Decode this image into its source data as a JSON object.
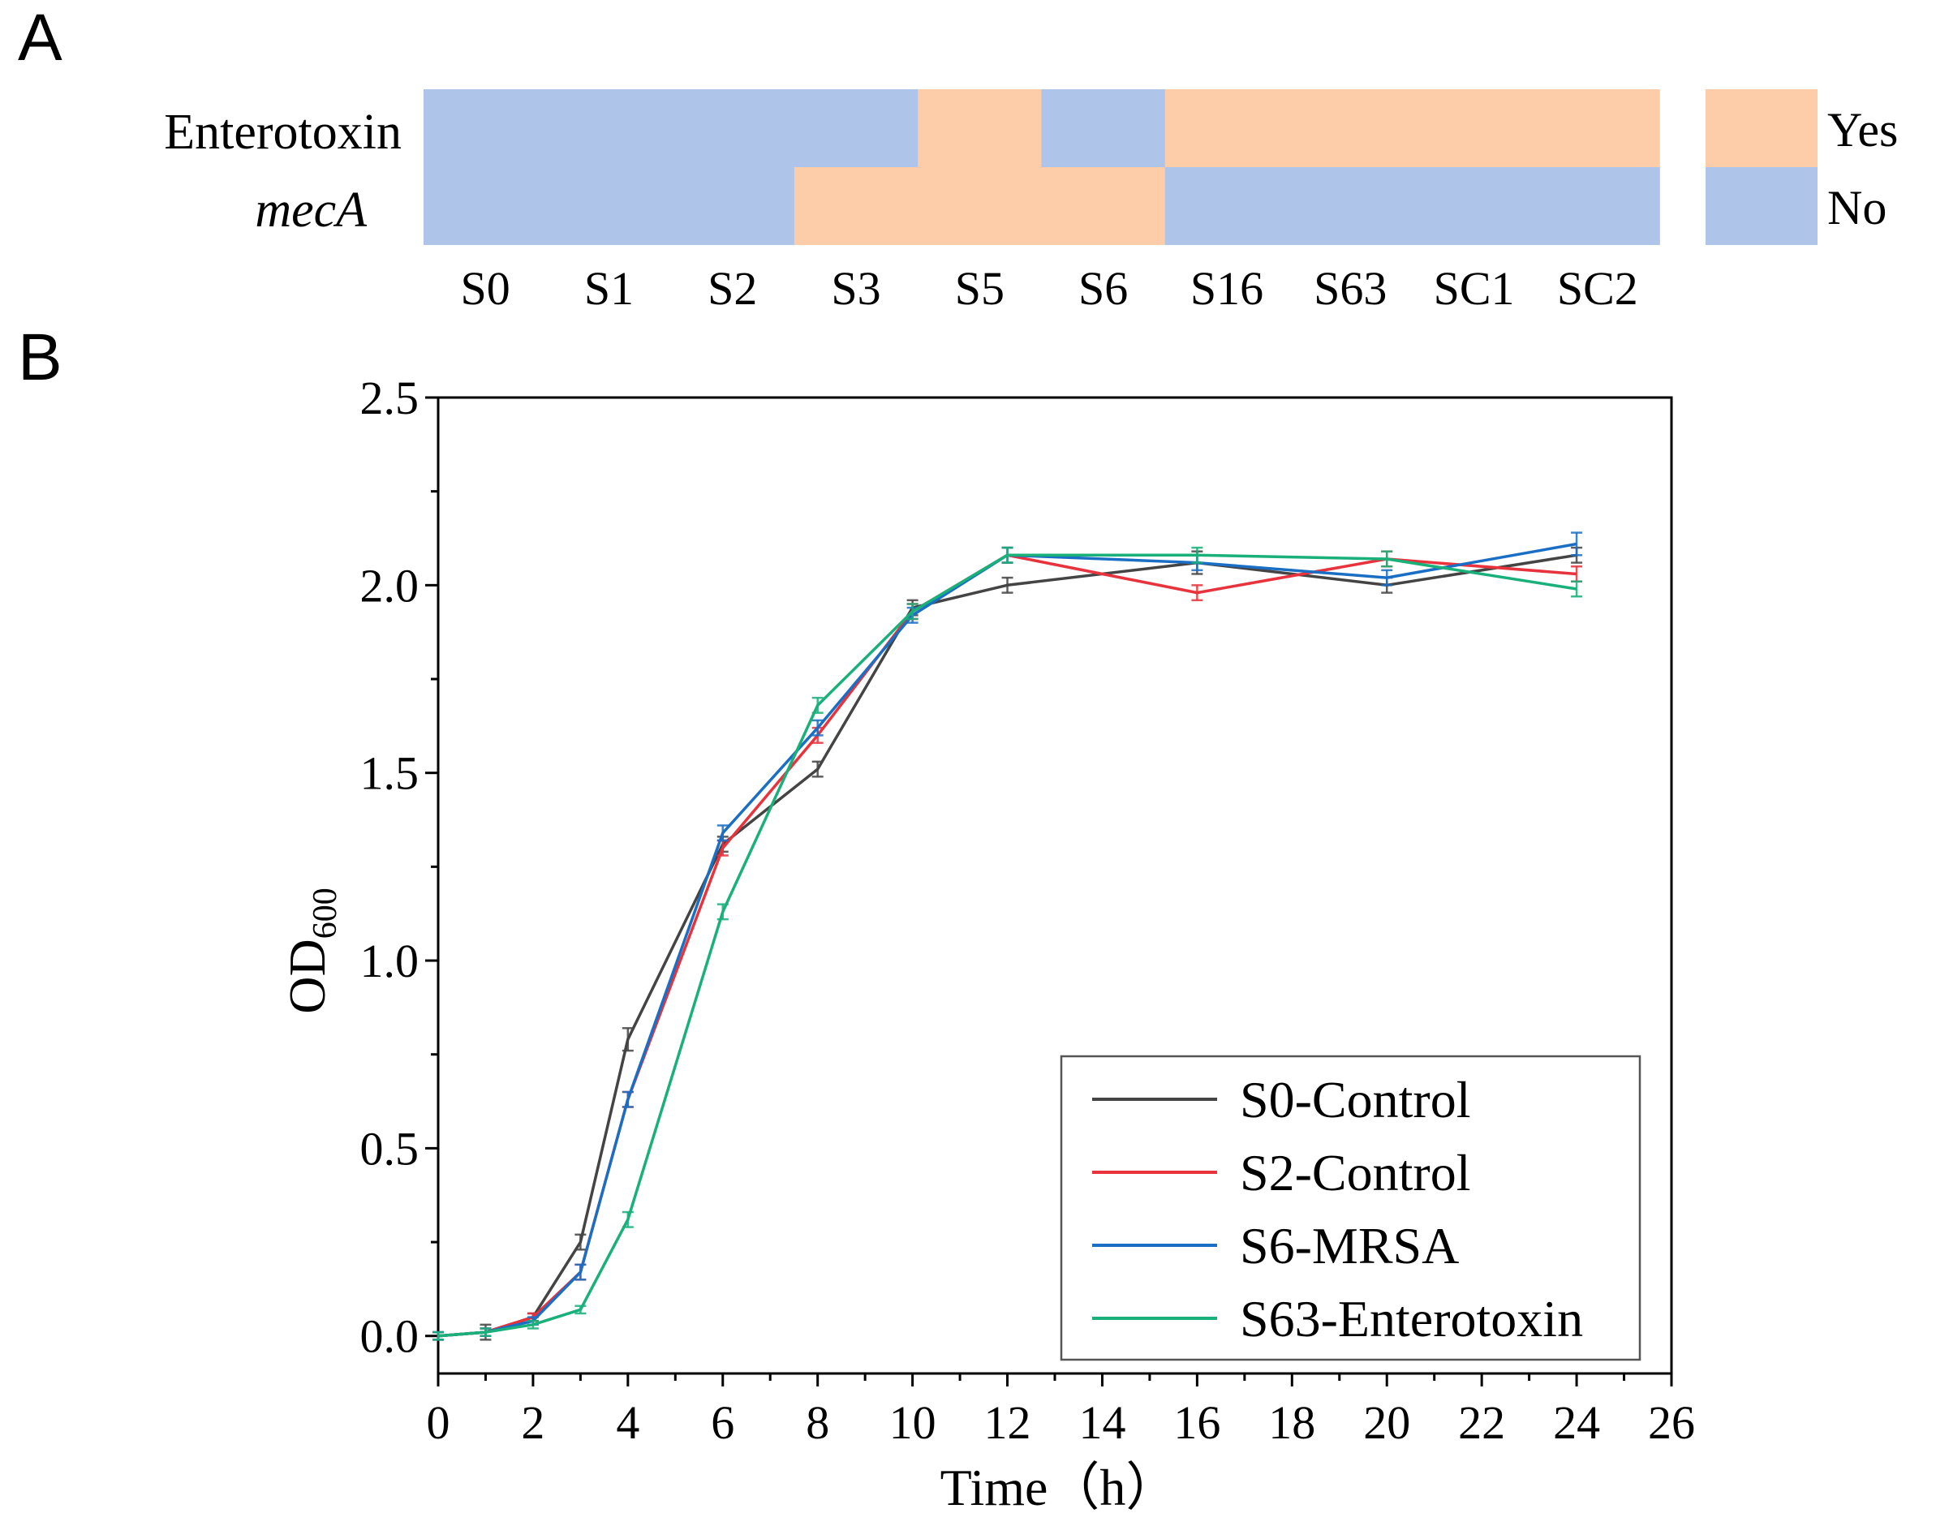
{
  "panels": {
    "a_label": "A",
    "b_label": "B"
  },
  "chart_data": [
    {
      "type": "heatmap",
      "rows": [
        "Enterotoxin",
        "mecA"
      ],
      "columns": [
        "S0",
        "S1",
        "S2",
        "S3",
        "S5",
        "S6",
        "S16",
        "S63",
        "SC1",
        "SC2"
      ],
      "values": [
        [
          "No",
          "No",
          "No",
          "No",
          "Yes",
          "No",
          "Yes",
          "Yes",
          "Yes",
          "Yes"
        ],
        [
          "No",
          "No",
          "No",
          "Yes",
          "Yes",
          "Yes",
          "No",
          "No",
          "No",
          "No"
        ]
      ],
      "legend": [
        {
          "label": "Yes",
          "color": "#fdcca8"
        },
        {
          "label": "No",
          "color": "#aec4e8"
        }
      ],
      "legend_position": "right"
    },
    {
      "type": "line",
      "xlabel": "Time（h）",
      "ylabel": "OD",
      "ylabel_subscript": "600",
      "xlim": [
        0,
        26
      ],
      "ylim": [
        -0.1,
        2.5
      ],
      "xticks": [
        0,
        2,
        4,
        6,
        8,
        10,
        12,
        14,
        16,
        18,
        20,
        22,
        24,
        26
      ],
      "yticks": [
        0.0,
        0.5,
        1.0,
        1.5,
        2.0,
        2.5
      ],
      "ytick_labels": [
        "0.0",
        "0.5",
        "1.0",
        "1.5",
        "2.0",
        "2.5"
      ],
      "grid": false,
      "legend_position": "bottom-right",
      "error_bars": true,
      "x": [
        0,
        1,
        2,
        3,
        4,
        6,
        8,
        10,
        12,
        16,
        20,
        24
      ],
      "series": [
        {
          "name": "S0-Control",
          "color": "#444444",
          "values": [
            0.0,
            0.01,
            0.05,
            0.25,
            0.79,
            1.31,
            1.51,
            1.94,
            2.0,
            2.06,
            2.0,
            2.08
          ],
          "errors": [
            0.01,
            0.02,
            0.01,
            0.02,
            0.03,
            0.02,
            0.02,
            0.02,
            0.02,
            0.03,
            0.02,
            0.02
          ]
        },
        {
          "name": "S2-Control",
          "color": "#e8323c",
          "values": [
            0.0,
            0.01,
            0.05,
            0.17,
            0.63,
            1.3,
            1.6,
            1.93,
            2.08,
            1.98,
            2.07,
            2.03
          ],
          "errors": [
            0.01,
            0.01,
            0.01,
            0.02,
            0.02,
            0.02,
            0.02,
            0.02,
            0.02,
            0.02,
            0.02,
            0.02
          ]
        },
        {
          "name": "S6-MRSA",
          "color": "#1a6fc4",
          "values": [
            0.0,
            0.01,
            0.04,
            0.17,
            0.63,
            1.34,
            1.62,
            1.92,
            2.08,
            2.06,
            2.02,
            2.11
          ],
          "errors": [
            0.01,
            0.01,
            0.01,
            0.02,
            0.02,
            0.02,
            0.02,
            0.02,
            0.02,
            0.02,
            0.02,
            0.03
          ]
        },
        {
          "name": "S63-Enterotoxin",
          "color": "#1ab07a",
          "values": [
            0.0,
            0.01,
            0.03,
            0.07,
            0.31,
            1.13,
            1.68,
            1.93,
            2.08,
            2.08,
            2.07,
            1.99
          ],
          "errors": [
            0.01,
            0.01,
            0.01,
            0.01,
            0.02,
            0.02,
            0.02,
            0.02,
            0.02,
            0.02,
            0.02,
            0.02
          ]
        }
      ]
    }
  ]
}
